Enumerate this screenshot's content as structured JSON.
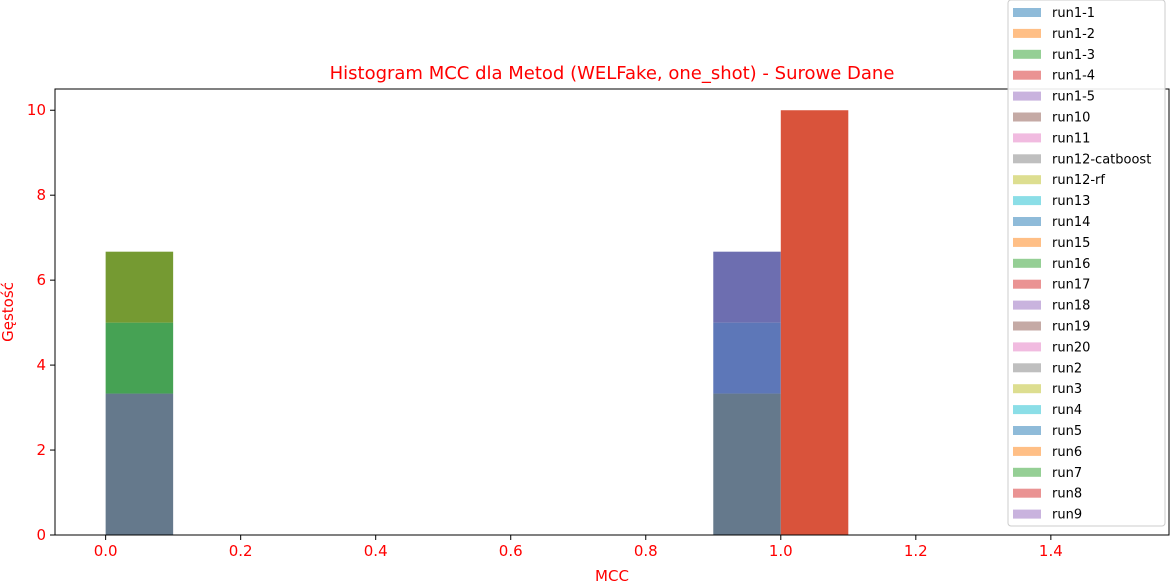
{
  "chart_data": {
    "type": "bar",
    "subtype": "histogram",
    "title": "Histogram MCC dla Metod (WELFake, one_shot) - Surowe Dane",
    "xlabel": "MCC",
    "ylabel": "Gęstość",
    "xlim": [
      -0.075,
      1.575
    ],
    "ylim": [
      0,
      10.5
    ],
    "xticks": [
      0.0,
      0.2,
      0.4,
      0.6,
      0.8,
      1.0,
      1.2,
      1.4
    ],
    "xtick_labels": [
      "0.0",
      "0.2",
      "0.4",
      "0.6",
      "0.8",
      "1.0",
      "1.2",
      "1.4"
    ],
    "yticks": [
      0,
      2,
      4,
      6,
      8,
      10
    ],
    "ytick_labels": [
      "0",
      "2",
      "4",
      "6",
      "8",
      "10"
    ],
    "grid": false,
    "legend_position": "upper right, outside plot",
    "text_color": "#ff0000",
    "bar_alpha": 0.5,
    "bins": [
      {
        "x0": 0.0,
        "x1": 0.1,
        "composite_levels": [
          {
            "top": 3.33,
            "color": "#65798c"
          },
          {
            "top": 5.0,
            "color": "#46a254"
          },
          {
            "top": 6.67,
            "color": "#759a32"
          }
        ]
      },
      {
        "x0": 0.9,
        "x1": 1.0,
        "composite_levels": [
          {
            "top": 3.33,
            "color": "#65798c"
          },
          {
            "top": 5.0,
            "color": "#5d77b8"
          },
          {
            "top": 6.67,
            "color": "#6d6eb0"
          }
        ]
      },
      {
        "x0": 1.0,
        "x1": 1.1,
        "composite_levels": [
          {
            "top": 10.0,
            "color": "#d9533b"
          }
        ]
      }
    ],
    "series": [
      {
        "name": "run1-1",
        "color": "#1f77b4"
      },
      {
        "name": "run1-2",
        "color": "#ff7f0e"
      },
      {
        "name": "run1-3",
        "color": "#2ca02c"
      },
      {
        "name": "run1-4",
        "color": "#d62728"
      },
      {
        "name": "run1-5",
        "color": "#9467bd"
      },
      {
        "name": "run10",
        "color": "#8c564b"
      },
      {
        "name": "run11",
        "color": "#e377c2"
      },
      {
        "name": "run12-catboost",
        "color": "#7f7f7f"
      },
      {
        "name": "run12-rf",
        "color": "#bcbd22"
      },
      {
        "name": "run13",
        "color": "#17becf"
      },
      {
        "name": "run14",
        "color": "#1f77b4"
      },
      {
        "name": "run15",
        "color": "#ff7f0e"
      },
      {
        "name": "run16",
        "color": "#2ca02c"
      },
      {
        "name": "run17",
        "color": "#d62728"
      },
      {
        "name": "run18",
        "color": "#9467bd"
      },
      {
        "name": "run19",
        "color": "#8c564b"
      },
      {
        "name": "run20",
        "color": "#e377c2"
      },
      {
        "name": "run2",
        "color": "#7f7f7f"
      },
      {
        "name": "run3",
        "color": "#bcbd22"
      },
      {
        "name": "run4",
        "color": "#17becf"
      },
      {
        "name": "run5",
        "color": "#1f77b4"
      },
      {
        "name": "run6",
        "color": "#ff7f0e"
      },
      {
        "name": "run7",
        "color": "#2ca02c"
      },
      {
        "name": "run8",
        "color": "#d62728"
      },
      {
        "name": "run9",
        "color": "#9467bd"
      }
    ]
  }
}
